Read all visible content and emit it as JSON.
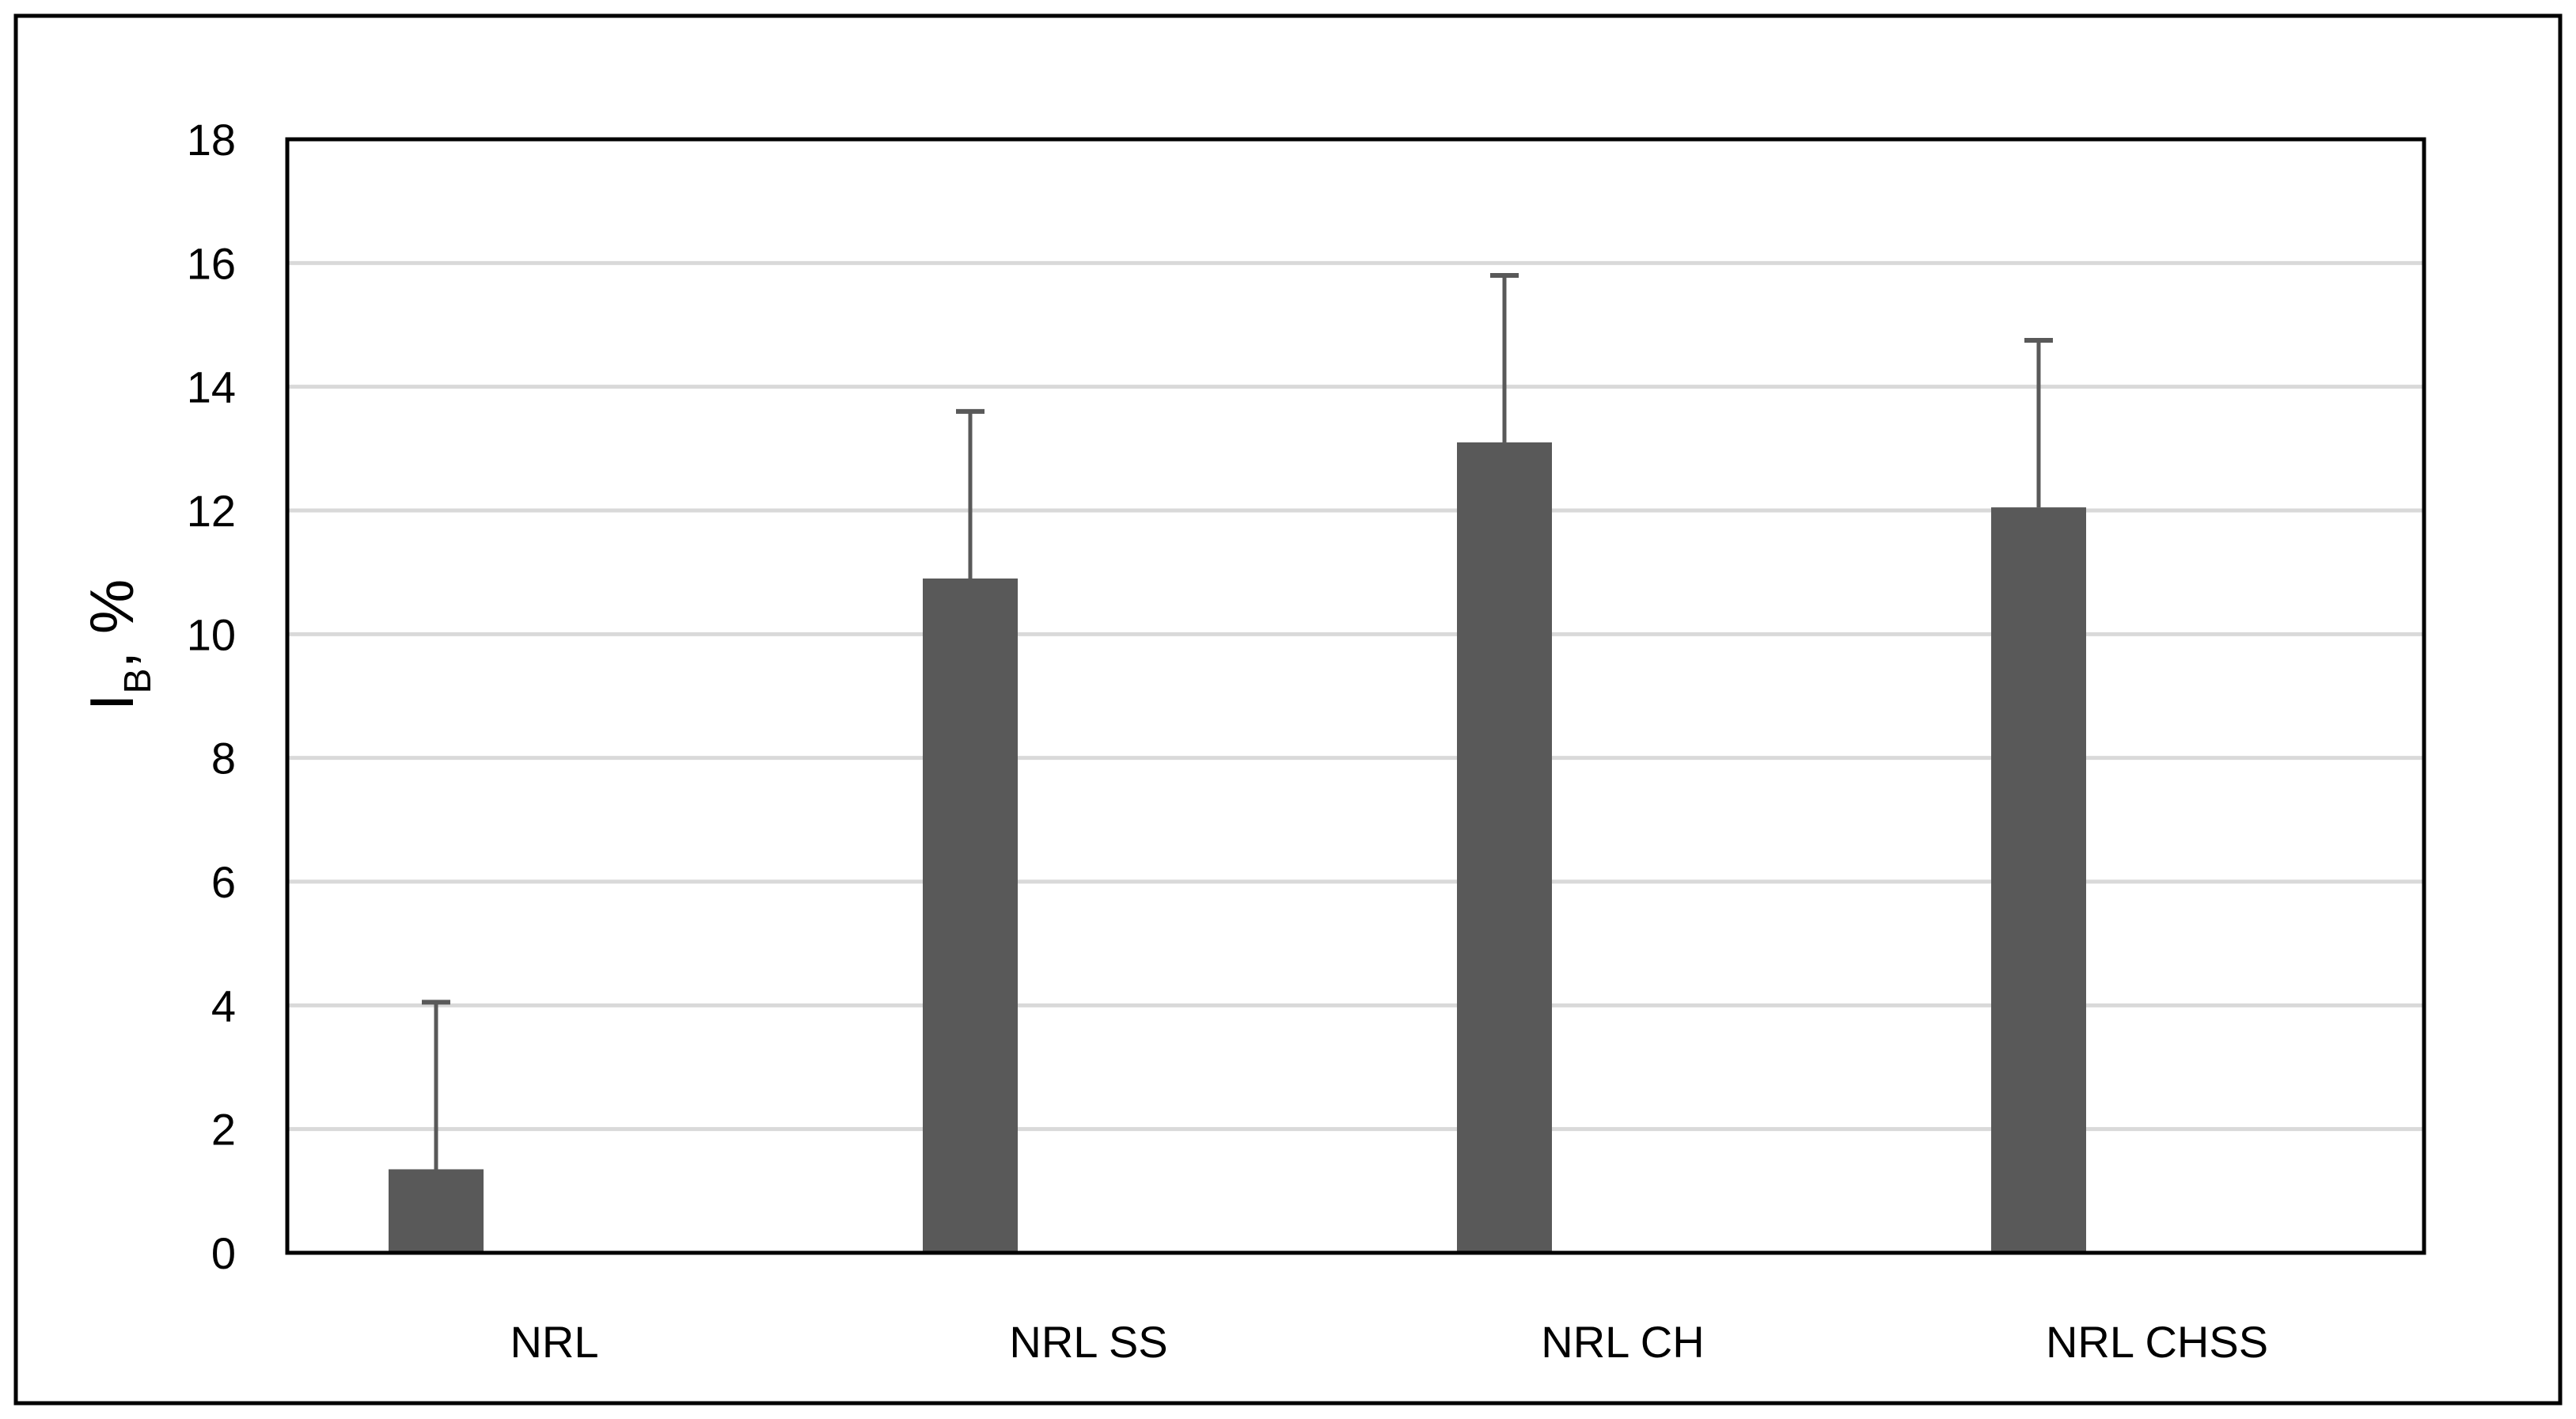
{
  "chart_data": {
    "type": "bar",
    "categories": [
      "NRL",
      "NRL SS",
      "NRL CH",
      "NRL CHSS"
    ],
    "series": [
      {
        "values": [
          1.35,
          10.9,
          13.1,
          12.05
        ],
        "error_plus": [
          2.7,
          2.7,
          2.7,
          2.7
        ]
      }
    ],
    "title": "",
    "xlabel": "",
    "ylabel": {
      "main": "I",
      "subscript": "B",
      "suffix": ", %"
    },
    "ylim": [
      0,
      18
    ],
    "y_ticks": [
      0,
      2,
      4,
      6,
      8,
      10,
      12,
      14,
      16,
      18
    ],
    "grid": true,
    "legend": "none",
    "colors": {
      "bar": "#595959",
      "error_bar": "#595959",
      "grid": "#d9d9d9",
      "frame": "#000000"
    }
  }
}
